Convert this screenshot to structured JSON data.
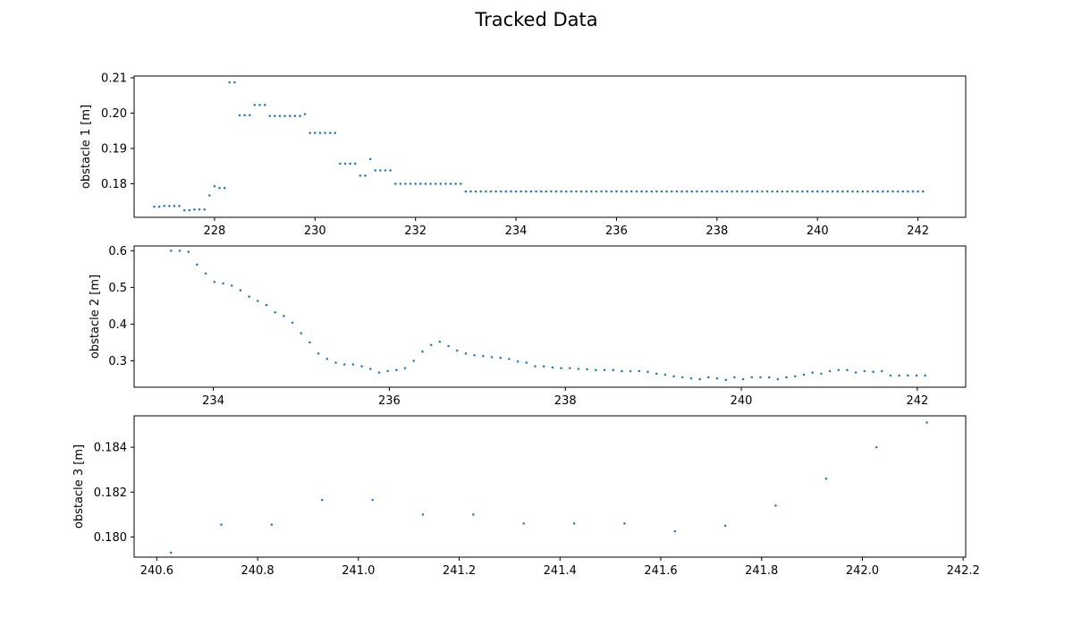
{
  "figure_title": "Tracked Data",
  "colors": {
    "point": "#1f77b4",
    "axes": "#000000"
  },
  "chart_data": [
    {
      "type": "scatter",
      "title": "",
      "xlabel": "",
      "ylabel": "obstacle 1 [m]",
      "xlim": [
        226.4,
        242.95
      ],
      "ylim": [
        0.1705,
        0.2105
      ],
      "xticks": [
        228,
        230,
        232,
        234,
        236,
        238,
        240,
        242
      ],
      "xtick_labels": [
        "228",
        "230",
        "232",
        "234",
        "236",
        "238",
        "240",
        "242"
      ],
      "yticks": [
        0.18,
        0.19,
        0.2,
        0.21
      ],
      "ytick_labels": [
        "0.18",
        "0.19",
        "0.20",
        "0.21"
      ],
      "grid": false,
      "series": [
        {
          "segments": [
            {
              "x0": 226.8,
              "step": 0.1,
              "y": [
                0.1735,
                0.1735,
                0.1737,
                0.1737,
                0.1737,
                0.1737,
                0.1725,
                0.1725,
                0.1727,
                0.1727,
                0.1727
              ]
            },
            {
              "x0": 227.9,
              "step": 0.1,
              "y": [
                0.1767,
                0.1793,
                0.1788,
                0.1788
              ]
            },
            {
              "x0": 228.3,
              "step": 0.1,
              "y": [
                0.2087,
                0.2087
              ]
            },
            {
              "x0": 228.5,
              "step": 0.1,
              "y": [
                0.1994,
                0.1994,
                0.1994
              ]
            },
            {
              "x0": 228.8,
              "step": 0.1,
              "y": [
                0.2023,
                0.2023,
                0.2023
              ]
            },
            {
              "x0": 229.1,
              "step": 0.1,
              "y": [
                0.1992,
                0.1992,
                0.1992,
                0.1992,
                0.1992,
                0.1992,
                0.1992,
                0.1997
              ]
            },
            {
              "x0": 229.9,
              "step": 0.1,
              "y": [
                0.1944,
                0.1944,
                0.1944,
                0.1944,
                0.1944,
                0.1944
              ]
            },
            {
              "x0": 230.5,
              "step": 0.1,
              "y": [
                0.1857,
                0.1857,
                0.1857,
                0.1857
              ]
            },
            {
              "x0": 230.9,
              "step": 0.1,
              "y": [
                0.1823,
                0.1823
              ]
            },
            {
              "x0": 231.1,
              "step": 0.1,
              "y": [
                0.187,
                0.1838,
                0.1838,
                0.1838,
                0.1838
              ]
            },
            {
              "x0": 231.6,
              "step": 0.1,
              "y": [
                0.18,
                0.18,
                0.18,
                0.18,
                0.18,
                0.18,
                0.18,
                0.18,
                0.18,
                0.18,
                0.18,
                0.18,
                0.18,
                0.18
              ]
            },
            {
              "x0": 233.0,
              "step": 0.1,
              "y_const": 0.1778,
              "count": 92
            }
          ]
        }
      ]
    },
    {
      "type": "scatter",
      "title": "",
      "xlabel": "",
      "ylabel": "obstacle 2 [m]",
      "xlim": [
        233.1,
        242.55
      ],
      "ylim": [
        0.228,
        0.613
      ],
      "xticks": [
        234,
        236,
        238,
        240,
        242
      ],
      "xtick_labels": [
        "234",
        "236",
        "238",
        "240",
        "242"
      ],
      "yticks": [
        0.3,
        0.4,
        0.5,
        0.6
      ],
      "ytick_labels": [
        "0.3",
        "0.4",
        "0.5",
        "0.6"
      ],
      "grid": false,
      "series": [
        {
          "x0": 233.52,
          "step": 0.0985,
          "y": [
            0.6,
            0.6,
            0.597,
            0.562,
            0.538,
            0.515,
            0.511,
            0.505,
            0.492,
            0.475,
            0.463,
            0.452,
            0.432,
            0.422,
            0.404,
            0.375,
            0.35,
            0.32,
            0.305,
            0.295,
            0.29,
            0.29,
            0.285,
            0.278,
            0.268,
            0.272,
            0.275,
            0.28,
            0.3,
            0.325,
            0.343,
            0.352,
            0.34,
            0.328,
            0.32,
            0.315,
            0.313,
            0.31,
            0.308,
            0.305,
            0.298,
            0.295,
            0.285,
            0.285,
            0.282,
            0.28,
            0.28,
            0.278,
            0.277,
            0.275,
            0.275,
            0.275,
            0.272,
            0.272,
            0.272,
            0.27,
            0.265,
            0.262,
            0.258,
            0.255,
            0.252,
            0.25,
            0.255,
            0.252,
            0.248,
            0.255,
            0.25,
            0.255,
            0.255,
            0.255,
            0.25,
            0.255,
            0.258,
            0.262,
            0.268,
            0.265,
            0.272,
            0.275,
            0.275,
            0.268,
            0.272,
            0.27,
            0.272,
            0.26,
            0.26,
            0.26,
            0.26,
            0.26
          ]
        }
      ]
    },
    {
      "type": "scatter",
      "title": "",
      "xlabel": "",
      "ylabel": "obstacle 3 [m]",
      "xlim": [
        240.555,
        242.205
      ],
      "ylim": [
        0.1791,
        0.1854
      ],
      "xticks": [
        240.6,
        240.8,
        241.0,
        241.2,
        241.4,
        241.6,
        241.8,
        242.0,
        242.2
      ],
      "xtick_labels": [
        "240.6",
        "240.8",
        "241.0",
        "241.2",
        "241.4",
        "241.6",
        "241.8",
        "242.0",
        "242.2"
      ],
      "yticks": [
        0.18,
        0.182,
        0.184
      ],
      "ytick_labels": [
        "0.180",
        "0.182",
        "0.184"
      ],
      "grid": false,
      "series": [
        {
          "x": [
            240.628,
            240.728,
            240.828,
            240.928,
            241.028,
            241.128,
            241.228,
            241.328,
            241.428,
            241.528,
            241.628,
            241.728,
            241.828,
            241.928,
            242.028,
            242.128
          ],
          "y": [
            0.1793,
            0.18055,
            0.18055,
            0.18165,
            0.18165,
            0.181,
            0.181,
            0.1806,
            0.1806,
            0.1806,
            0.18025,
            0.1805,
            0.1814,
            0.1826,
            0.184,
            0.1851
          ]
        }
      ]
    }
  ]
}
